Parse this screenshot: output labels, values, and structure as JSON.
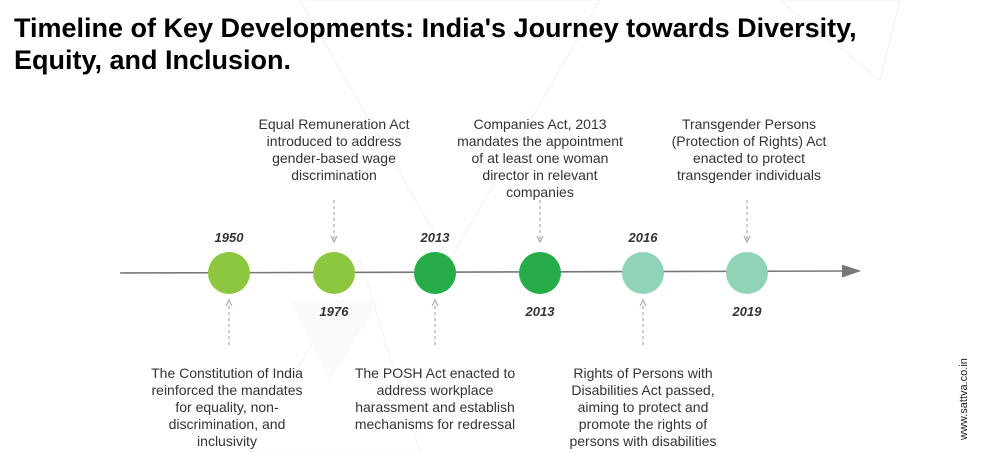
{
  "title": "Timeline of Key Developments: India's Journey towards Diversity, Equity, and Inclusion.",
  "website": "www.sattva.co.in",
  "colors": {
    "light_green": "#8dc63f",
    "dark_green": "#26ad4a",
    "mint": "#91d3b6",
    "axis": "#777777",
    "connector": "#aaaaaa"
  },
  "events": [
    {
      "year": "1950",
      "position": "above-year",
      "text": "The Constitution of India reinforced the mandates for equality, non-discrimination, and inclusivity",
      "color_key": "light_green"
    },
    {
      "year": "1976",
      "position": "below-year",
      "text": "Equal Remuneration Act introduced to address gender-based wage discrimination",
      "color_key": "light_green"
    },
    {
      "year": "2013",
      "position": "above-year",
      "text": "The POSH Act enacted to address workplace harassment and establish mechanisms for redressal",
      "color_key": "dark_green"
    },
    {
      "year": "2013",
      "position": "below-year",
      "text": "Companies Act, 2013 mandates the appointment of at least one woman director in relevant companies",
      "color_key": "dark_green"
    },
    {
      "year": "2016",
      "position": "above-year",
      "text": "Rights of Persons with Disabilities Act passed, aiming to protect and promote the rights of persons with disabilities",
      "color_key": "mint"
    },
    {
      "year": "2019",
      "position": "below-year",
      "text": "Transgender Persons (Protection of Rights) Act enacted to protect transgender individuals",
      "color_key": "mint"
    }
  ]
}
